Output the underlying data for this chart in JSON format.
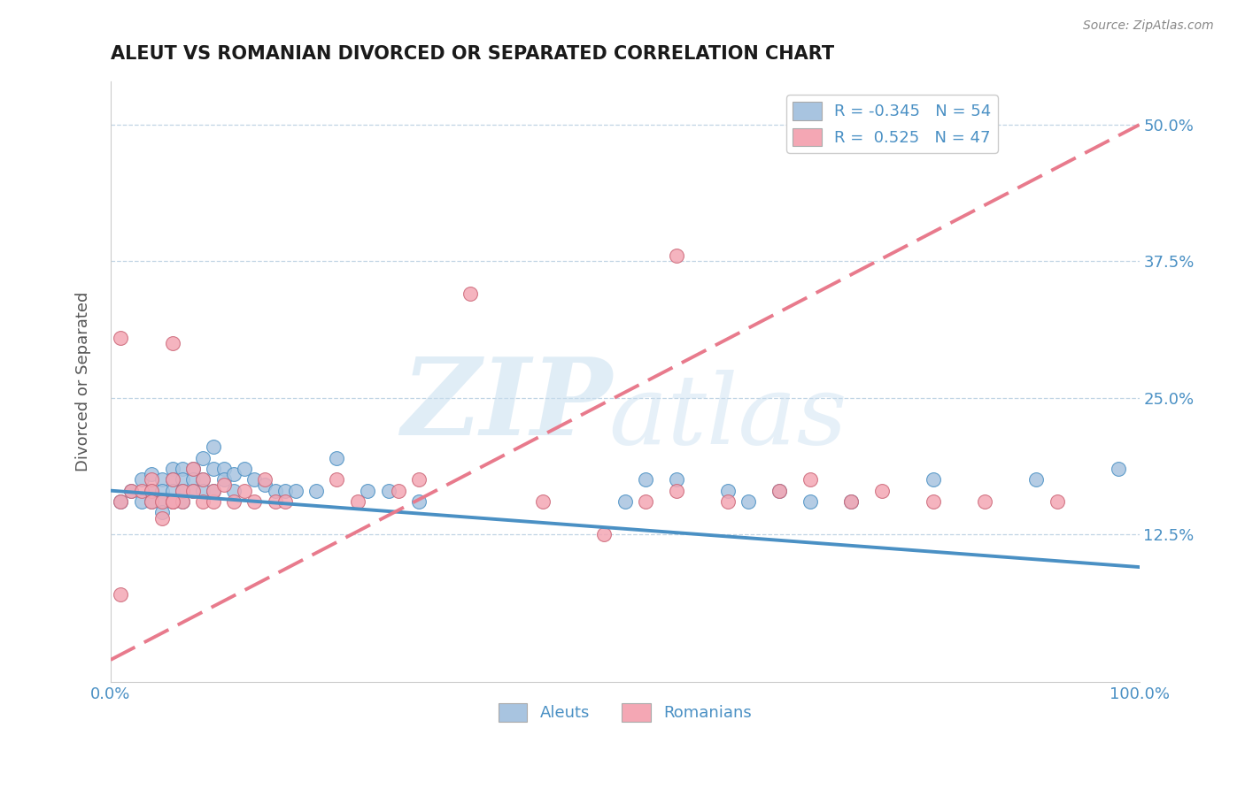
{
  "title": "ALEUT VS ROMANIAN DIVORCED OR SEPARATED CORRELATION CHART",
  "source": "Source: ZipAtlas.com",
  "ylabel": "Divorced or Separated",
  "aleut_r": -0.345,
  "aleut_n": 54,
  "romanian_r": 0.525,
  "romanian_n": 47,
  "aleut_color": "#a8c4e0",
  "romanian_color": "#f4a7b4",
  "aleut_line_color": "#4a90c4",
  "romanian_line_color": "#e87a8c",
  "watermark_color": "#c8dff0",
  "title_color": "#1a1a1a",
  "axis_label_color": "#4a90c4",
  "xmin": 0.0,
  "xmax": 1.0,
  "ymin": -0.01,
  "ymax": 0.54,
  "yticks": [
    0.125,
    0.25,
    0.375,
    0.5
  ],
  "ytick_labels": [
    "12.5%",
    "25.0%",
    "37.5%",
    "50.0%"
  ],
  "aleut_trend_x": [
    0.0,
    1.0
  ],
  "aleut_trend_y": [
    0.165,
    0.095
  ],
  "romanian_trend_x": [
    0.0,
    1.0
  ],
  "romanian_trend_y": [
    0.01,
    0.5
  ],
  "aleut_x": [
    0.01,
    0.02,
    0.03,
    0.03,
    0.04,
    0.04,
    0.04,
    0.05,
    0.05,
    0.05,
    0.05,
    0.06,
    0.06,
    0.06,
    0.06,
    0.07,
    0.07,
    0.07,
    0.07,
    0.08,
    0.08,
    0.08,
    0.09,
    0.09,
    0.09,
    0.1,
    0.1,
    0.1,
    0.11,
    0.11,
    0.12,
    0.12,
    0.13,
    0.14,
    0.15,
    0.16,
    0.17,
    0.18,
    0.2,
    0.22,
    0.25,
    0.27,
    0.3,
    0.5,
    0.52,
    0.55,
    0.6,
    0.62,
    0.65,
    0.68,
    0.72,
    0.8,
    0.9,
    0.98
  ],
  "aleut_y": [
    0.155,
    0.165,
    0.175,
    0.155,
    0.18,
    0.165,
    0.155,
    0.175,
    0.165,
    0.155,
    0.145,
    0.185,
    0.175,
    0.165,
    0.155,
    0.185,
    0.175,
    0.165,
    0.155,
    0.185,
    0.175,
    0.165,
    0.195,
    0.175,
    0.165,
    0.205,
    0.185,
    0.165,
    0.185,
    0.175,
    0.18,
    0.165,
    0.185,
    0.175,
    0.17,
    0.165,
    0.165,
    0.165,
    0.165,
    0.195,
    0.165,
    0.165,
    0.155,
    0.155,
    0.175,
    0.175,
    0.165,
    0.155,
    0.165,
    0.155,
    0.155,
    0.175,
    0.175,
    0.185
  ],
  "romanian_x": [
    0.01,
    0.01,
    0.02,
    0.03,
    0.04,
    0.04,
    0.04,
    0.05,
    0.05,
    0.06,
    0.06,
    0.06,
    0.07,
    0.07,
    0.08,
    0.08,
    0.09,
    0.09,
    0.1,
    0.1,
    0.11,
    0.12,
    0.13,
    0.14,
    0.15,
    0.16,
    0.17,
    0.22,
    0.24,
    0.28,
    0.3,
    0.35,
    0.42,
    0.48,
    0.52,
    0.55,
    0.6,
    0.65,
    0.68,
    0.72,
    0.75,
    0.8,
    0.85,
    0.92,
    0.01,
    0.06,
    0.55
  ],
  "romanian_y": [
    0.155,
    0.07,
    0.165,
    0.165,
    0.175,
    0.165,
    0.155,
    0.14,
    0.155,
    0.175,
    0.155,
    0.3,
    0.165,
    0.155,
    0.185,
    0.165,
    0.155,
    0.175,
    0.155,
    0.165,
    0.17,
    0.155,
    0.165,
    0.155,
    0.175,
    0.155,
    0.155,
    0.175,
    0.155,
    0.165,
    0.175,
    0.345,
    0.155,
    0.125,
    0.155,
    0.165,
    0.155,
    0.165,
    0.175,
    0.155,
    0.165,
    0.155,
    0.155,
    0.155,
    0.305,
    0.155,
    0.38
  ]
}
